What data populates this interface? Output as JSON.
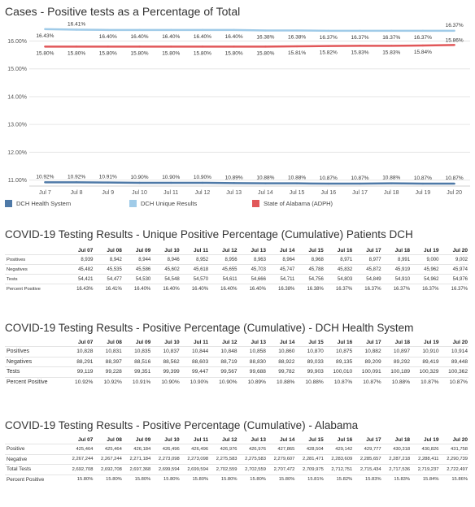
{
  "chart_data": {
    "type": "line",
    "title": "Cases - Positive tests as a Percentage of Total",
    "categories": [
      "Jul 7",
      "Jul 8",
      "Jul 9",
      "Jul 10",
      "Jul 11",
      "Jul 12",
      "Jul 13",
      "Jul 14",
      "Jul 15",
      "Jul 16",
      "Jul 17",
      "Jul 18",
      "Jul 19",
      "Jul 20"
    ],
    "y_ticks": [
      "11.00%",
      "12.00%",
      "13.00%",
      "14.00%",
      "15.00%",
      "16.00%"
    ],
    "ylim": [
      10.9,
      16.6
    ],
    "grid": true,
    "legend_position": "bottom",
    "series": [
      {
        "name": "DCH Health System",
        "color": "#4e79a7",
        "values": [
          10.92,
          10.92,
          10.91,
          10.9,
          10.9,
          10.9,
          10.89,
          10.88,
          10.88,
          10.87,
          10.87,
          10.88,
          10.87,
          10.87
        ],
        "labels": [
          "10.92%",
          "10.92%",
          "10.91%",
          "10.90%",
          "10.90%",
          "10.90%",
          "10.89%",
          "10.88%",
          "10.88%",
          "10.87%",
          "10.87%",
          "10.88%",
          "10.87%",
          "10.87%"
        ]
      },
      {
        "name": "DCH Unique Results",
        "color": "#a0cbe8",
        "values": [
          16.43,
          16.41,
          16.4,
          16.4,
          16.4,
          16.4,
          16.4,
          16.38,
          16.38,
          16.37,
          16.37,
          16.37,
          16.37,
          16.37
        ],
        "labels": [
          "16.43%",
          "16.41%",
          "16.40%",
          "16.40%",
          "16.40%",
          "16.40%",
          "16.40%",
          "16.38%",
          "16.38%",
          "16.37%",
          "16.37%",
          "16.37%",
          "16.37%",
          "16.37%"
        ]
      },
      {
        "name": "State of Alabama (ADPH)",
        "color": "#e15759",
        "values": [
          15.8,
          15.8,
          15.8,
          15.8,
          15.8,
          15.8,
          15.8,
          15.8,
          15.81,
          15.82,
          15.83,
          15.83,
          15.84,
          15.86
        ],
        "labels": [
          "15.80%",
          "15.80%",
          "15.80%",
          "15.80%",
          "15.80%",
          "15.80%",
          "15.80%",
          "15.80%",
          "15.81%",
          "15.82%",
          "15.83%",
          "15.83%",
          "15.84%",
          "15.86%"
        ]
      }
    ]
  },
  "tables": [
    {
      "title": "COVID-19 Testing Results - Unique Positive Percentage (Cumulative) Patients DCH",
      "columns": [
        "Jul 07",
        "Jul 08",
        "Jul 09",
        "Jul 10",
        "Jul 11",
        "Jul 12",
        "Jul 13",
        "Jul 14",
        "Jul 15",
        "Jul 16",
        "Jul 17",
        "Jul 18",
        "Jul 19",
        "Jul 20"
      ],
      "rows": [
        {
          "label": "Positives",
          "values": [
            "8,939",
            "8,942",
            "8,944",
            "8,946",
            "8,952",
            "8,956",
            "8,963",
            "8,964",
            "8,968",
            "8,971",
            "8,977",
            "8,991",
            "9,000",
            "9,002"
          ]
        },
        {
          "label": "Negatives",
          "values": [
            "45,482",
            "45,535",
            "45,586",
            "45,602",
            "45,618",
            "45,655",
            "45,703",
            "45,747",
            "45,788",
            "45,832",
            "45,872",
            "45,919",
            "45,962",
            "45,974"
          ]
        },
        {
          "label": "Tests",
          "values": [
            "54,421",
            "54,477",
            "54,530",
            "54,548",
            "54,570",
            "54,611",
            "54,666",
            "54,711",
            "54,756",
            "54,803",
            "54,849",
            "54,910",
            "54,962",
            "54,976"
          ]
        },
        {
          "label": "Percent Positive",
          "values": [
            "16.43%",
            "16.41%",
            "16.40%",
            "16.40%",
            "16.40%",
            "16.40%",
            "16.40%",
            "16.38%",
            "16.38%",
            "16.37%",
            "16.37%",
            "16.37%",
            "16.37%",
            "16.37%"
          ]
        }
      ]
    },
    {
      "title": "COVID-19 Testing Results - Positive Percentage (Cumulative) - DCH Health System",
      "columns": [
        "Jul 07",
        "Jul 08",
        "Jul 09",
        "Jul 10",
        "Jul 11",
        "Jul 12",
        "Jul 13",
        "Jul 14",
        "Jul 15",
        "Jul 16",
        "Jul 17",
        "Jul 18",
        "Jul 19",
        "Jul 20"
      ],
      "rows": [
        {
          "label": "Positives",
          "values": [
            "10,828",
            "10,831",
            "10,835",
            "10,837",
            "10,844",
            "10,848",
            "10,858",
            "10,860",
            "10,870",
            "10,875",
            "10,882",
            "10,897",
            "10,910",
            "10,914"
          ]
        },
        {
          "label": "Negatives",
          "values": [
            "88,291",
            "88,397",
            "88,516",
            "88,562",
            "88,603",
            "88,719",
            "88,830",
            "88,922",
            "89,033",
            "89,135",
            "89,209",
            "89,292",
            "89,419",
            "89,448"
          ]
        },
        {
          "label": "Tests",
          "values": [
            "99,119",
            "99,228",
            "99,351",
            "99,399",
            "99,447",
            "99,567",
            "99,688",
            "99,782",
            "99,903",
            "100,010",
            "100,091",
            "100,189",
            "100,329",
            "100,362"
          ]
        },
        {
          "label": "Percent Positive",
          "values": [
            "10.92%",
            "10.92%",
            "10.91%",
            "10.90%",
            "10.90%",
            "10.90%",
            "10.89%",
            "10.88%",
            "10.88%",
            "10.87%",
            "10.87%",
            "10.88%",
            "10.87%",
            "10.87%"
          ]
        }
      ]
    },
    {
      "title": "COVID-19 Testing Results - Positive Percentage (Cumulative) - Alabama",
      "columns": [
        "Jul 07",
        "Jul 08",
        "Jul 09",
        "Jul 10",
        "Jul 11",
        "Jul 12",
        "Jul 13",
        "Jul 14",
        "Jul 15",
        "Jul 16",
        "Jul 17",
        "Jul 18",
        "Jul 19",
        "Jul 20"
      ],
      "rows": [
        {
          "label": "Positive",
          "values": [
            "425,464",
            "425,464",
            "426,184",
            "426,496",
            "426,496",
            "426,976",
            "426,976",
            "427,865",
            "428,504",
            "429,142",
            "429,777",
            "430,318",
            "430,826",
            "431,758"
          ]
        },
        {
          "label": "Negative",
          "values": [
            "2,267,244",
            "2,267,244",
            "2,271,184",
            "2,273,098",
            "2,273,098",
            "2,275,583",
            "2,275,583",
            "2,279,607",
            "2,281,471",
            "2,283,609",
            "2,285,657",
            "2,287,218",
            "2,288,411",
            "2,290,739"
          ]
        },
        {
          "label": "Total Tests",
          "values": [
            "2,692,708",
            "2,692,708",
            "2,697,368",
            "2,699,594",
            "2,699,594",
            "2,702,559",
            "2,702,559",
            "2,707,472",
            "2,709,975",
            "2,712,751",
            "2,715,434",
            "2,717,536",
            "2,719,237",
            "2,722,497"
          ]
        },
        {
          "label": "Percent Positive",
          "values": [
            "15.80%",
            "15.80%",
            "15.80%",
            "15.80%",
            "15.80%",
            "15.80%",
            "15.80%",
            "15.80%",
            "15.81%",
            "15.82%",
            "15.83%",
            "15.83%",
            "15.84%",
            "15.86%"
          ]
        }
      ]
    }
  ]
}
